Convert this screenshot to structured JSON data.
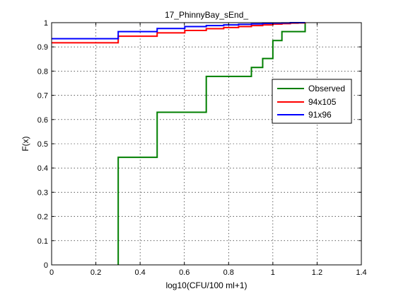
{
  "chart_data": {
    "type": "line",
    "title": "17_PhinnyBay_sEnd_",
    "xlabel": "log10(CFU/100 ml+1)",
    "ylabel": "F(x)",
    "xlim": [
      0,
      1.4
    ],
    "ylim": [
      0,
      1
    ],
    "x_ticks": [
      0,
      0.2,
      0.4,
      0.6,
      0.8,
      1.0,
      1.2,
      1.4
    ],
    "x_tick_labels": [
      "0",
      "0.2",
      "0.4",
      "0.6",
      "0.8",
      "1",
      "1.2",
      "1.4"
    ],
    "y_ticks": [
      0,
      0.1,
      0.2,
      0.3,
      0.4,
      0.5,
      0.6,
      0.7,
      0.8,
      0.9,
      1.0
    ],
    "y_tick_labels": [
      "0",
      "0.1",
      "0.2",
      "0.3",
      "0.4",
      "0.5",
      "0.6",
      "0.7",
      "0.8",
      "0.9",
      "1"
    ],
    "grid": true,
    "legend_position": "right",
    "series": [
      {
        "name": "Observed",
        "color": "#007f00",
        "step": "post",
        "x": [
          0.301,
          0.301,
          0.477,
          0.699,
          0.903,
          0.954,
          1.0,
          1.041,
          1.146
        ],
        "y": [
          0.0,
          0.444,
          0.63,
          0.778,
          0.815,
          0.852,
          0.926,
          0.963,
          1.0
        ]
      },
      {
        "name": "94x105",
        "color": "#ff0000",
        "step": "post",
        "x": [
          0.0,
          0.301,
          0.477,
          0.602,
          0.699,
          0.778,
          0.845,
          0.903,
          0.954,
          1.0,
          1.041,
          1.079,
          1.114,
          1.146
        ],
        "y": [
          0.917,
          0.944,
          0.958,
          0.968,
          0.975,
          0.98,
          0.984,
          0.988,
          0.991,
          0.994,
          0.996,
          0.998,
          0.999,
          1.0
        ]
      },
      {
        "name": "91x96",
        "color": "#0000ff",
        "step": "post",
        "x": [
          0.0,
          0.301,
          0.477,
          0.602,
          0.699,
          0.778,
          0.845,
          0.903,
          0.954,
          1.0,
          1.041,
          1.079,
          1.146
        ],
        "y": [
          0.934,
          0.963,
          0.976,
          0.984,
          0.988,
          0.991,
          0.993,
          0.995,
          0.997,
          0.998,
          0.999,
          1.0,
          1.0
        ]
      }
    ]
  }
}
